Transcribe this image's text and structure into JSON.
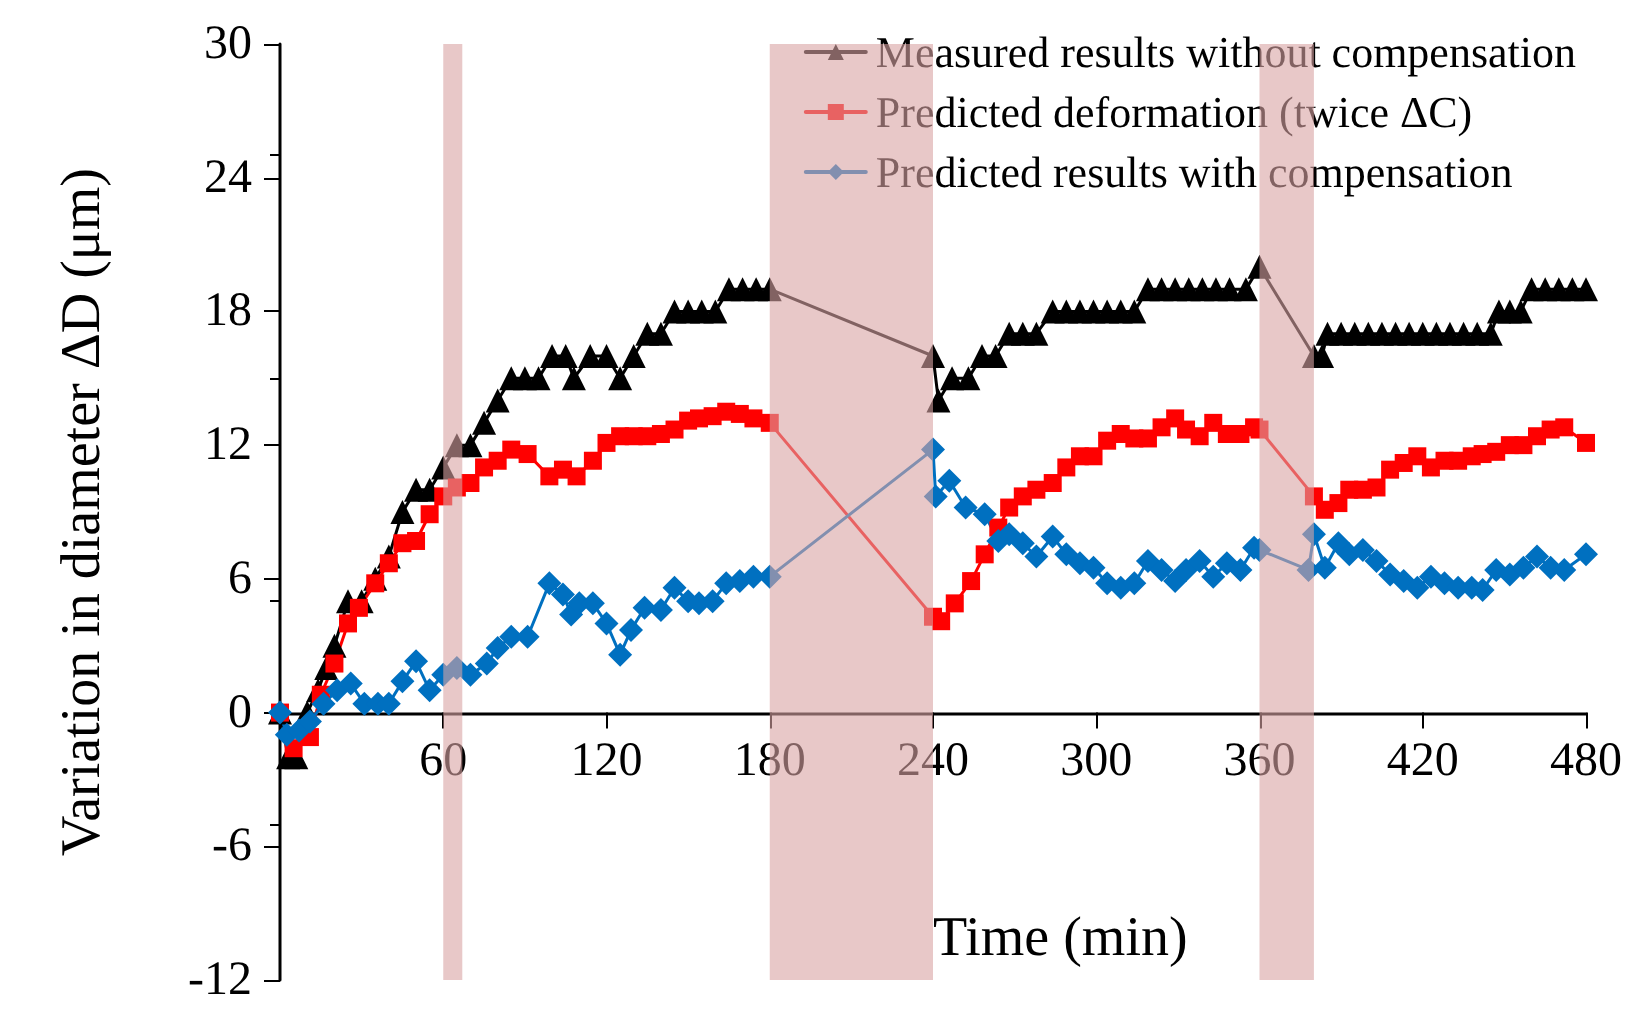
{
  "chart_data": {
    "type": "line",
    "xlabel": "Time (min)",
    "ylabel": "Variation in diameter ΔD (μm)",
    "xlim": [
      0,
      480
    ],
    "xticks": [
      60,
      120,
      180,
      240,
      300,
      360,
      420,
      480
    ],
    "ylim": [
      -12,
      30
    ],
    "yticks": [
      -12,
      -6,
      0,
      6,
      12,
      18,
      24,
      30
    ],
    "grid": false,
    "legend": "top right",
    "line_style": "solid",
    "bands": [
      {
        "axis": "x",
        "from": 60,
        "to": 67,
        "color": "#d9a3a3"
      },
      {
        "axis": "x",
        "from": 180,
        "to": 240,
        "color": "#d9a3a3"
      },
      {
        "axis": "x",
        "from": 360,
        "to": 380,
        "color": "#d9a3a3"
      }
    ],
    "series": [
      {
        "name": "Measured results without compensation",
        "color": "#000000",
        "marker": "triangle",
        "x": [
          0,
          3,
          6,
          10,
          14,
          17,
          20,
          25,
          30,
          35,
          40,
          45,
          50,
          55,
          60,
          65,
          70,
          75,
          80,
          85,
          90,
          95,
          100,
          105,
          108,
          114,
          120,
          125,
          130,
          135,
          140,
          145,
          150,
          155,
          160,
          165,
          170,
          175,
          180,
          240,
          242,
          247,
          253,
          258,
          263,
          268,
          273,
          278,
          284,
          289,
          294,
          299,
          304,
          309,
          314,
          319,
          324,
          329,
          334,
          339,
          344,
          349,
          355,
          360,
          380,
          383,
          385,
          390,
          395,
          400,
          405,
          410,
          415,
          420,
          425,
          430,
          435,
          440,
          445,
          448,
          452,
          456,
          460,
          465,
          470,
          475,
          480
        ],
        "values": [
          0,
          -2,
          -2,
          0,
          1,
          2,
          3,
          5,
          5,
          6,
          7,
          9,
          10,
          10,
          11,
          12,
          12,
          13,
          14,
          15,
          15,
          15,
          16,
          16,
          15,
          16,
          16,
          15,
          16,
          17,
          17,
          18,
          18,
          18,
          18,
          19,
          19,
          19,
          19,
          16,
          14,
          15,
          15,
          16,
          16,
          17,
          17,
          17,
          18,
          18,
          18,
          18,
          18,
          18,
          18,
          19,
          19,
          19,
          19,
          19,
          19,
          19,
          19,
          20,
          16,
          16,
          17,
          17,
          17,
          17,
          17,
          17,
          17,
          17,
          17,
          17,
          17,
          17,
          17,
          18,
          18,
          18,
          19,
          19,
          19,
          19,
          19
        ]
      },
      {
        "name": "Predicted deformation (twice ΔC)",
        "color": "#ff0000",
        "marker": "square",
        "x": [
          0,
          5,
          11,
          15,
          20,
          25,
          29,
          35,
          40,
          45,
          50,
          55,
          60,
          65,
          70,
          75,
          80,
          85,
          91,
          99,
          104,
          109,
          115,
          120,
          125,
          130,
          135,
          140,
          145,
          150,
          154,
          159,
          164,
          169,
          174,
          180,
          240,
          243,
          248,
          254,
          259,
          264,
          268,
          273,
          278,
          284,
          289,
          294,
          299,
          304,
          309,
          314,
          319,
          324,
          329,
          333,
          338,
          343,
          348,
          353,
          358,
          360,
          380,
          384,
          389,
          393,
          398,
          403,
          408,
          413,
          418,
          423,
          428,
          433,
          438,
          442,
          447,
          452,
          457,
          462,
          467,
          472,
          480
        ],
        "values": [
          0,
          -1.6,
          -1.1,
          0.8,
          2.2,
          4,
          4.7,
          5.8,
          6.7,
          7.6,
          7.7,
          8.9,
          9.7,
          10.1,
          10.3,
          11,
          11.3,
          11.8,
          11.6,
          10.6,
          10.9,
          10.6,
          11.3,
          12.1,
          12.4,
          12.4,
          12.4,
          12.5,
          12.7,
          13.1,
          13.2,
          13.3,
          13.5,
          13.4,
          13.2,
          13,
          4.3,
          4.1,
          4.9,
          5.9,
          7.1,
          8.3,
          9.2,
          9.7,
          10,
          10.3,
          11,
          11.5,
          11.5,
          12.2,
          12.5,
          12.3,
          12.3,
          12.8,
          13.2,
          12.7,
          12.4,
          13,
          12.5,
          12.5,
          12.8,
          12.7,
          9.7,
          9.1,
          9.4,
          10,
          10,
          10.1,
          10.9,
          11.2,
          11.5,
          11,
          11.3,
          11.3,
          11.5,
          11.6,
          11.7,
          12,
          12,
          12.4,
          12.7,
          12.8,
          12.1
        ]
      },
      {
        "name": "Predicted results with compensation",
        "color": "#0070c0",
        "marker": "diamond",
        "x": [
          0,
          2.5,
          7,
          11,
          16,
          21,
          26,
          31,
          36,
          40,
          45,
          50,
          55,
          60,
          65,
          70,
          76,
          80,
          85,
          91,
          99,
          104,
          107,
          110,
          115,
          120,
          125,
          129,
          134,
          140,
          145,
          150,
          154,
          159,
          164,
          169,
          174,
          180,
          240,
          241,
          246,
          252,
          259,
          264,
          268,
          273,
          278,
          284,
          289,
          294,
          299,
          304,
          309,
          314,
          319,
          324,
          329,
          333,
          338,
          343,
          348,
          353,
          358,
          360,
          378,
          380,
          384,
          389,
          393,
          398,
          403,
          408,
          413,
          418,
          423,
          428,
          433,
          438,
          442,
          447,
          452,
          457,
          462,
          467,
          472,
          480
        ],
        "values": [
          0,
          -1,
          -0.8,
          -0.4,
          0.4,
          1,
          1.3,
          0.4,
          0.4,
          0.4,
          1.4,
          2.3,
          1,
          1.7,
          2,
          1.7,
          2.2,
          2.9,
          3.4,
          3.4,
          5.8,
          5.3,
          4.4,
          4.9,
          4.9,
          4,
          2.6,
          3.7,
          4.7,
          4.6,
          5.6,
          5,
          4.9,
          5,
          5.8,
          5.9,
          6.1,
          6.1,
          11.8,
          9.7,
          10.4,
          9.2,
          8.9,
          7.7,
          8,
          7.6,
          7,
          7.9,
          7.1,
          6.7,
          6.5,
          5.8,
          5.6,
          5.8,
          6.8,
          6.4,
          5.9,
          6.4,
          6.8,
          6.1,
          6.7,
          6.4,
          7.4,
          7.3,
          6.4,
          8,
          6.5,
          7.6,
          7.1,
          7.3,
          6.8,
          6.2,
          5.9,
          5.6,
          6.1,
          5.8,
          5.6,
          5.6,
          5.5,
          6.4,
          6.2,
          6.5,
          7,
          6.5,
          6.4,
          7.1
        ]
      }
    ]
  }
}
